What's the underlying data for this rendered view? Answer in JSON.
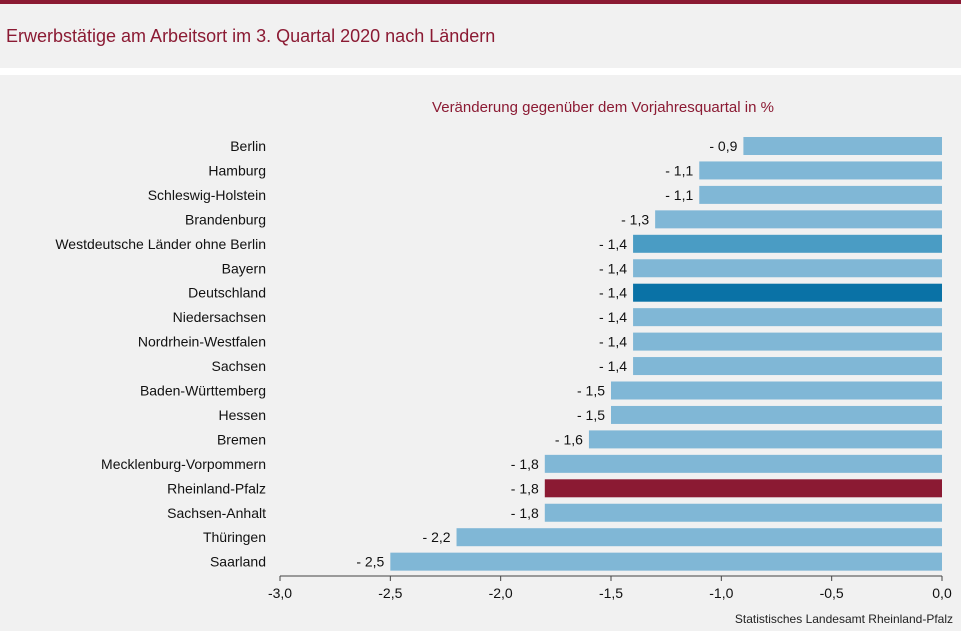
{
  "title": "Erwerbstätige am Arbeitsort im 3. Quartal 2020 nach Ländern",
  "source": "Statistisches Landesamt Rheinland-Pfalz",
  "colors": {
    "accent": "#8b1a33",
    "bar_default": "#80b7d6",
    "bar_west": "#4a9cc4",
    "bar_germany": "#0a72a6",
    "bar_rlp": "#8b1a33",
    "background": "#f1f1f1"
  },
  "chart_data": {
    "type": "bar",
    "orientation": "horizontal",
    "title": "Veränderung gegenüber dem Vorjahresquartal in %",
    "xlim": [
      -3.0,
      0.0
    ],
    "xticks": [
      -3.0,
      -2.5,
      -2.0,
      -1.5,
      -1.0,
      -0.5,
      0.0
    ],
    "xtick_labels": [
      "-3,0",
      "-2,5",
      "-2,0",
      "-1,5",
      "-1,0",
      "-0,5",
      "0,0"
    ],
    "grid": false,
    "categories": [
      "Berlin",
      "Hamburg",
      "Schleswig-Holstein",
      "Brandenburg",
      "Westdeutsche Länder ohne Berlin",
      "Bayern",
      "Deutschland",
      "Niedersachsen",
      "Nordrhein-Westfalen",
      "Sachsen",
      "Baden-Württemberg",
      "Hessen",
      "Bremen",
      "Mecklenburg-Vorpommern",
      "Rheinland-Pfalz",
      "Sachsen-Anhalt",
      "Thüringen",
      "Saarland"
    ],
    "values": [
      -0.9,
      -1.1,
      -1.1,
      -1.3,
      -1.4,
      -1.4,
      -1.4,
      -1.4,
      -1.4,
      -1.4,
      -1.5,
      -1.5,
      -1.6,
      -1.8,
      -1.8,
      -1.8,
      -2.2,
      -2.5
    ],
    "data_labels": [
      "- 0,9",
      "- 1,1",
      "- 1,1",
      "- 1,3",
      "- 1,4",
      "- 1,4",
      "- 1,4",
      "- 1,4",
      "- 1,4",
      "- 1,4",
      "- 1,5",
      "- 1,5",
      "- 1,6",
      "- 1,8",
      "- 1,8",
      "- 1,8",
      "- 2,2",
      "- 2,5"
    ],
    "highlight": {
      "Westdeutsche Länder ohne Berlin": "bar_west",
      "Deutschland": "bar_germany",
      "Rheinland-Pfalz": "bar_rlp"
    }
  }
}
